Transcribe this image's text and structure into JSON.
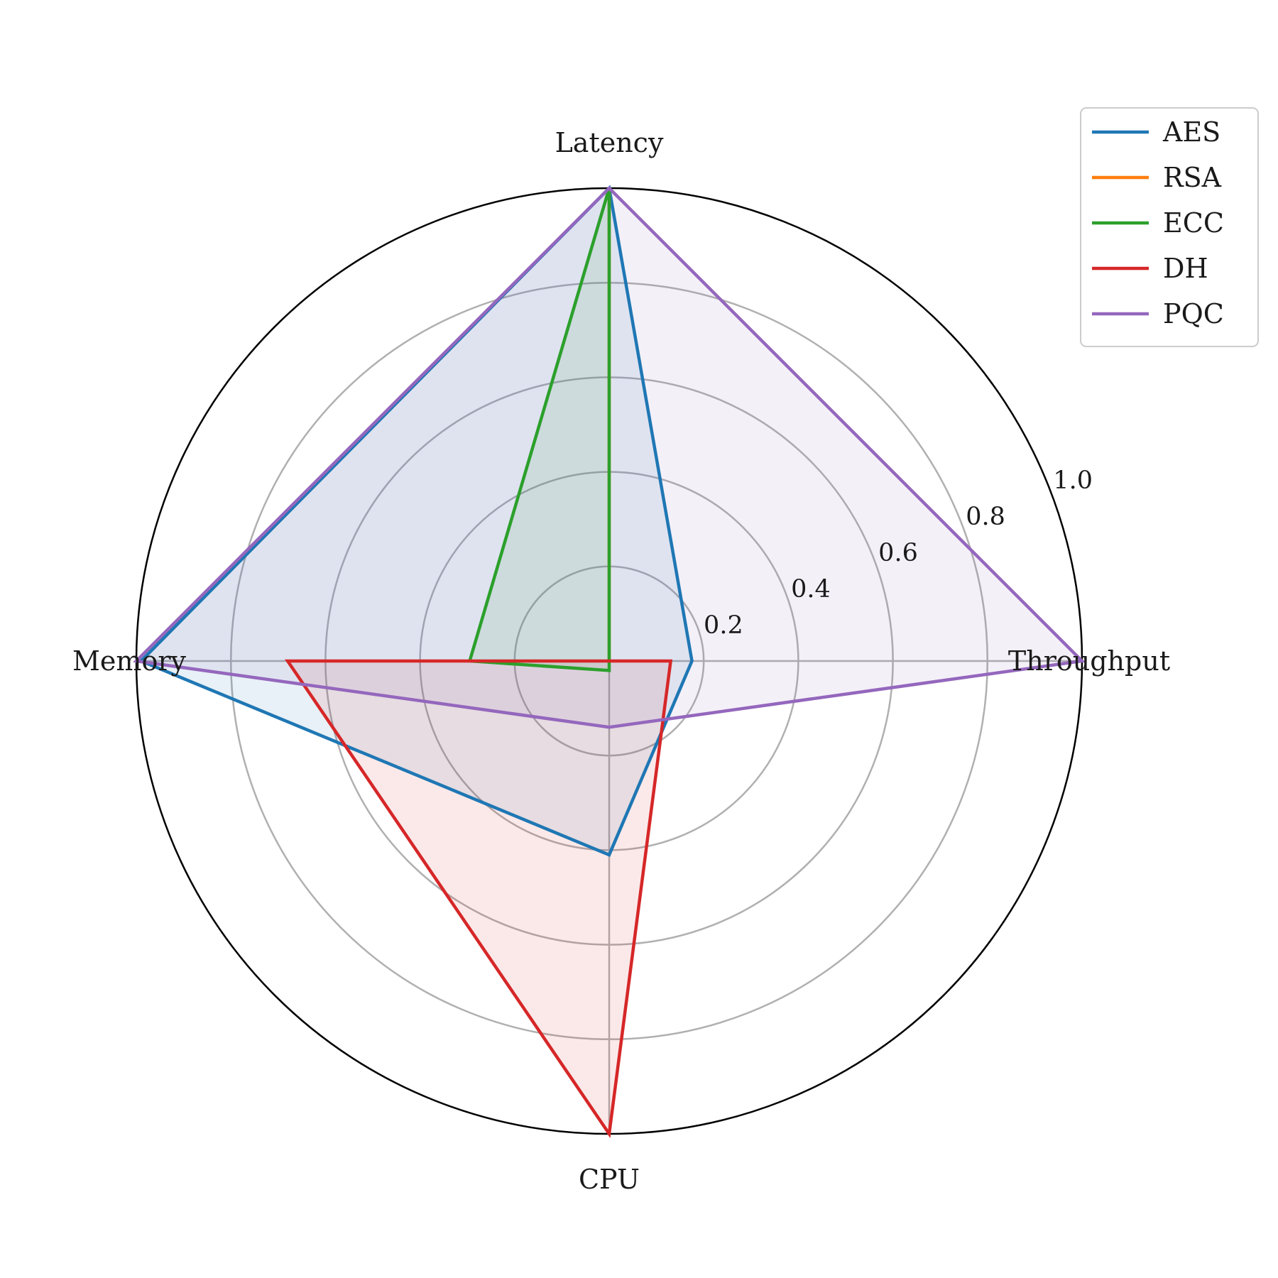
{
  "chart_data": {
    "type": "radar",
    "axes": [
      "Latency",
      "Throughput",
      "CPU",
      "Memory"
    ],
    "rlim": [
      0,
      1.0
    ],
    "rticks": [
      0.2,
      0.4,
      0.6,
      0.8,
      1.0
    ],
    "rtick_labels": [
      "0.2",
      "0.4",
      "0.6",
      "0.8",
      "1.0"
    ],
    "grid": true,
    "legend_position": "top-right",
    "series": [
      {
        "name": "AES",
        "values": [
          1.0,
          0.175,
          0.41,
          0.99
        ],
        "color": "#1f77b4",
        "fill": "#1f77b4",
        "fill_opacity": 0.1
      },
      {
        "name": "RSA",
        "values": [
          1.0,
          0.0,
          0.0,
          0.0
        ],
        "color": "#ff7f0e",
        "fill": "#ff7f0e",
        "fill_opacity": 0.1
      },
      {
        "name": "ECC",
        "values": [
          1.0,
          0.0,
          0.02,
          0.295
        ],
        "color": "#2ca02c",
        "fill": "#2ca02c",
        "fill_opacity": 0.1
      },
      {
        "name": "DH",
        "values": [
          0.0,
          0.13,
          1.0,
          0.68
        ],
        "color": "#d62728",
        "fill": "#d62728",
        "fill_opacity": 0.1
      },
      {
        "name": "PQC",
        "values": [
          1.0,
          1.0,
          0.14,
          1.0
        ],
        "color": "#9467bd",
        "fill": "#9467bd",
        "fill_opacity": 0.1
      }
    ]
  }
}
